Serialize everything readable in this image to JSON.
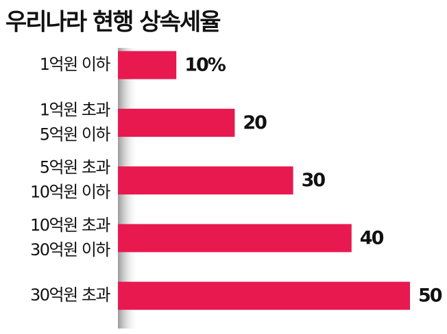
{
  "chart_data": {
    "type": "bar",
    "orientation": "horizontal",
    "title": "우리나라 현행 상속세율",
    "categories": [
      [
        "1억원 이하"
      ],
      [
        "1억원 초과",
        "5억원 이하"
      ],
      [
        "5억원 초과",
        "10억원 이하"
      ],
      [
        "10억원 초과",
        "30억원 이하"
      ],
      [
        "30억원 초과"
      ]
    ],
    "values": [
      10,
      20,
      30,
      40,
      50
    ],
    "value_labels": [
      "10%",
      "20",
      "30",
      "40",
      "50"
    ],
    "color": "#e8194f",
    "xlim": [
      0,
      50
    ]
  }
}
